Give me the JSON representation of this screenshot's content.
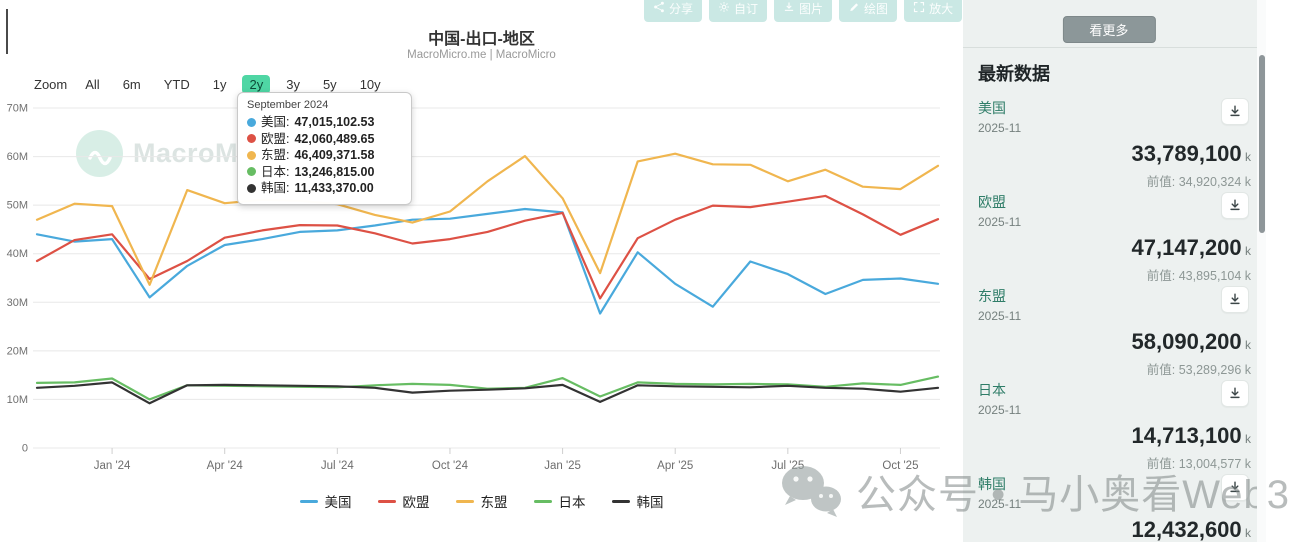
{
  "toolbar": {
    "buttons": [
      {
        "icon": "share-icon",
        "label": "分享"
      },
      {
        "icon": "gear-icon",
        "label": "自订"
      },
      {
        "icon": "image-download-icon",
        "label": "图片"
      },
      {
        "icon": "pencil-icon",
        "label": "绘图"
      },
      {
        "icon": "expand-icon",
        "label": "放大"
      }
    ]
  },
  "header": {
    "title": "中国-出口-地区",
    "subtitle": "MacroMicro.me | MacroMicro"
  },
  "zoom_bar": {
    "label": "Zoom",
    "options": [
      "All",
      "6m",
      "YTD",
      "1y",
      "2y",
      "3y",
      "5y",
      "10y"
    ],
    "active": "2y"
  },
  "tooltip": {
    "title": "September 2024",
    "rows": [
      {
        "name": "美国",
        "value": "47,015,102.53",
        "color": "#49a9dc"
      },
      {
        "name": "欧盟",
        "value": "42,060,489.65",
        "color": "#dd5145"
      },
      {
        "name": "东盟",
        "value": "46,409,371.58",
        "color": "#f0b64f"
      },
      {
        "name": "日本",
        "value": "13,246,815.00",
        "color": "#67bd63"
      },
      {
        "name": "韩国",
        "value": "11,433,370.00",
        "color": "#333333"
      }
    ]
  },
  "chart_data": {
    "type": "line",
    "title": "中国-出口-地区",
    "x": [
      "2023-11",
      "2023-12",
      "2024-01",
      "2024-02",
      "2024-03",
      "2024-04",
      "2024-05",
      "2024-06",
      "2024-07",
      "2024-08",
      "2024-09",
      "2024-10",
      "2024-11",
      "2024-12",
      "2025-01",
      "2025-02",
      "2025-03",
      "2025-04",
      "2025-05",
      "2025-06",
      "2025-07",
      "2025-08",
      "2025-09",
      "2025-10",
      "2025-11"
    ],
    "ylim": [
      0,
      72
    ],
    "grid": true,
    "legend_position": "bottom",
    "y_ticks": [
      {
        "label": "0",
        "value": 0
      },
      {
        "label": "10M",
        "value": 10
      },
      {
        "label": "20M",
        "value": 20
      },
      {
        "label": "30M",
        "value": 30
      },
      {
        "label": "40M",
        "value": 40
      },
      {
        "label": "50M",
        "value": 50
      },
      {
        "label": "60M",
        "value": 60
      },
      {
        "label": "70M",
        "value": 70
      }
    ],
    "x_ticks": [
      {
        "label": "Jan '24",
        "index": 2
      },
      {
        "label": "Apr '24",
        "index": 5
      },
      {
        "label": "Jul '24",
        "index": 8
      },
      {
        "label": "Oct '24",
        "index": 11
      },
      {
        "label": "Jan '25",
        "index": 14
      },
      {
        "label": "Apr '25",
        "index": 17
      },
      {
        "label": "Jul '25",
        "index": 20
      },
      {
        "label": "Oct '25",
        "index": 23
      }
    ],
    "unit_note": "values in millions of k",
    "series": [
      {
        "name": "美国",
        "color": "#49a9dc",
        "values": [
          44.0,
          42.5,
          43.0,
          31.0,
          37.5,
          41.8,
          43.0,
          44.5,
          44.8,
          45.8,
          47.0,
          47.2,
          48.2,
          49.2,
          48.5,
          27.7,
          40.3,
          33.8,
          29.1,
          38.4,
          35.8,
          31.7,
          34.6,
          34.9,
          33.8
        ]
      },
      {
        "name": "欧盟",
        "color": "#dd5145",
        "values": [
          38.5,
          42.8,
          44.0,
          34.8,
          38.5,
          43.3,
          44.8,
          45.9,
          45.8,
          44.2,
          42.1,
          43.0,
          44.5,
          46.8,
          48.4,
          30.8,
          43.2,
          47.0,
          49.9,
          49.6,
          50.7,
          51.9,
          48.1,
          43.9,
          47.1
        ]
      },
      {
        "name": "东盟",
        "color": "#f0b64f",
        "values": [
          47.0,
          50.3,
          49.8,
          33.6,
          53.1,
          50.4,
          51.1,
          50.9,
          50.2,
          48.0,
          46.4,
          48.7,
          54.9,
          60.1,
          51.4,
          36.0,
          59.0,
          60.6,
          58.4,
          58.3,
          54.9,
          57.3,
          53.8,
          53.3,
          58.1
        ]
      },
      {
        "name": "日本",
        "color": "#67bd63",
        "values": [
          13.4,
          13.5,
          14.3,
          10.0,
          12.9,
          12.8,
          12.7,
          12.6,
          12.5,
          12.9,
          13.2,
          13.0,
          12.2,
          12.4,
          14.4,
          10.6,
          13.5,
          13.2,
          13.1,
          13.2,
          13.1,
          12.6,
          13.3,
          13.0,
          14.7
        ]
      },
      {
        "name": "韩国",
        "color": "#333333",
        "values": [
          12.4,
          12.8,
          13.5,
          9.2,
          12.9,
          13.0,
          12.9,
          12.8,
          12.7,
          12.4,
          11.4,
          11.8,
          12.0,
          12.3,
          13.0,
          9.5,
          12.9,
          12.7,
          12.6,
          12.5,
          12.8,
          12.4,
          12.2,
          11.6,
          12.4
        ]
      }
    ]
  },
  "watermarks": {
    "chart_logo_text": "MacroMicro",
    "overlay_text": "公众号 • 马小奥看Web3"
  },
  "sidebar": {
    "see_more": "看更多",
    "heading": "最新数据",
    "items": [
      {
        "name": "美国",
        "date": "2025-11",
        "value": "33,789,100",
        "unit": "k",
        "prev": "前值: 34,920,324 k"
      },
      {
        "name": "欧盟",
        "date": "2025-11",
        "value": "47,147,200",
        "unit": "k",
        "prev": "前值: 43,895,104 k"
      },
      {
        "name": "东盟",
        "date": "2025-11",
        "value": "58,090,200",
        "unit": "k",
        "prev": "前值: 53,289,296 k"
      },
      {
        "name": "日本",
        "date": "2025-11",
        "value": "14,713,100",
        "unit": "k",
        "prev": "前值: 13,004,577 k"
      },
      {
        "name": "韩国",
        "date": "2025-11",
        "value": "12,432,600",
        "unit": "k",
        "prev": ""
      }
    ]
  }
}
